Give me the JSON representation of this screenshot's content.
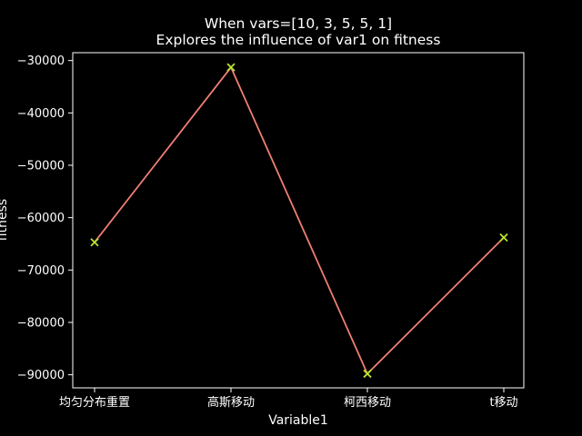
{
  "chart_data": {
    "type": "line",
    "title": "When vars=[10, 3, 5, 5, 1]",
    "subtitle": "Explores the influence of var1 on fitness",
    "xlabel": "Variable1",
    "ylabel": "fitness",
    "categories": [
      "均匀分布重置",
      "高斯移动",
      "柯西移动",
      "t移动"
    ],
    "series": [
      {
        "values": [
          -64700,
          -31300,
          -89800,
          -63800
        ]
      }
    ],
    "yticks": [
      -30000,
      -40000,
      -50000,
      -60000,
      -70000,
      -80000,
      -90000
    ],
    "ylim": [
      -92500,
      -28500
    ],
    "grid": false,
    "colors": {
      "background": "#000000",
      "axes": "#ffffff",
      "line": "#f07f73",
      "marker": "#b8e62e"
    }
  }
}
